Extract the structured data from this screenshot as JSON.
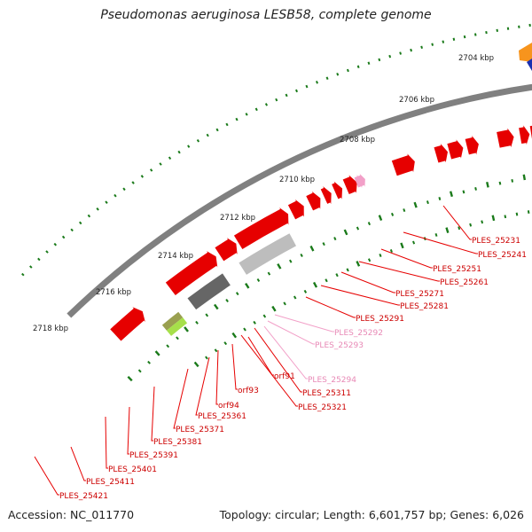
{
  "title": "Pseudomonas aeruginosa LESB58, complete genome",
  "accession": "Accession: NC_011770",
  "summary": "Topology: circular; Length: 6,601,757 bp; Genes: 6,026",
  "colors": {
    "backbone": "#808080",
    "cds": "#e60000",
    "cds_label": "#cc0000",
    "pseudo": "#f2a0c8",
    "pseudo_label": "#e889b6",
    "orf_label": "#cc0000",
    "ticks": "#1a7a1a",
    "gray_dark": "#666666",
    "gray_light": "#bdbdbd",
    "lime": "#a6e04a",
    "olive": "#9aa050",
    "orange": "#f7941d",
    "blue": "#1a2fb0"
  },
  "scale_labels": [
    "2704 kbp",
    "2706 kbp",
    "2708 kbp",
    "2710 kbp",
    "2712 kbp",
    "2714 kbp",
    "2716 kbp",
    "2718 kbp"
  ],
  "gene_labels": [
    {
      "name": "PLES_25231",
      "kind": "cds"
    },
    {
      "name": "PLES_25241",
      "kind": "cds"
    },
    {
      "name": "PLES_25251",
      "kind": "cds"
    },
    {
      "name": "PLES_25261",
      "kind": "cds"
    },
    {
      "name": "PLES_25271",
      "kind": "cds"
    },
    {
      "name": "PLES_25281",
      "kind": "cds"
    },
    {
      "name": "PLES_25291",
      "kind": "cds"
    },
    {
      "name": "PLES_25292",
      "kind": "pseudo"
    },
    {
      "name": "PLES_25293",
      "kind": "pseudo"
    },
    {
      "name": "PLES_25294",
      "kind": "pseudo"
    },
    {
      "name": "PLES_25311",
      "kind": "cds"
    },
    {
      "name": "PLES_25321",
      "kind": "cds"
    },
    {
      "name": "orf91",
      "kind": "orf"
    },
    {
      "name": "orf93",
      "kind": "orf"
    },
    {
      "name": "orf94",
      "kind": "orf"
    },
    {
      "name": "PLES_25361",
      "kind": "cds"
    },
    {
      "name": "PLES_25371",
      "kind": "cds"
    },
    {
      "name": "PLES_25381",
      "kind": "cds"
    },
    {
      "name": "PLES_25391",
      "kind": "cds"
    },
    {
      "name": "PLES_25401",
      "kind": "cds"
    },
    {
      "name": "PLES_25411",
      "kind": "cds"
    },
    {
      "name": "PLES_25421",
      "kind": "cds"
    }
  ]
}
